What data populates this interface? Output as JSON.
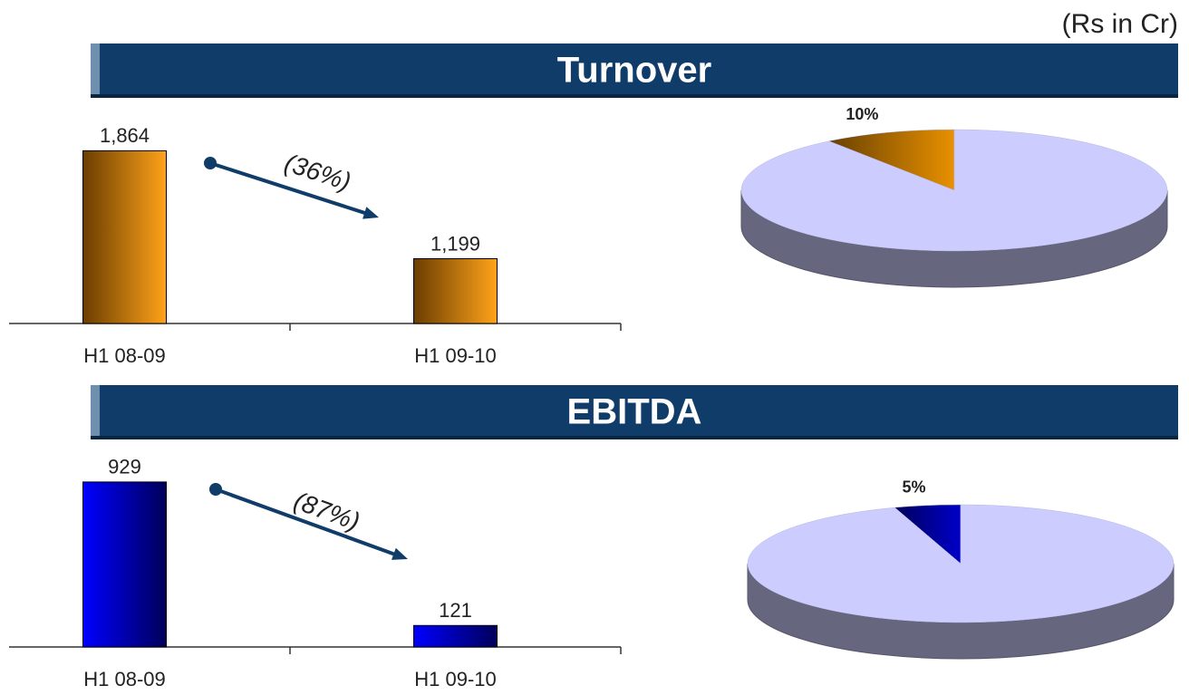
{
  "unit_note": "(Rs in Cr)",
  "chart_data": [
    {
      "type": "bar",
      "title": "Turnover",
      "categories": [
        "H1 08-09",
        "H1 09-10"
      ],
      "values": [
        1864,
        1199
      ],
      "value_labels": [
        "1,864",
        "1,199"
      ],
      "gradient": [
        "#6b3d00",
        "#ffa31a"
      ],
      "ylim": [
        800,
        2000
      ],
      "annotation": "(36%)"
    },
    {
      "type": "pie",
      "values": [
        10,
        90
      ],
      "value_labels": [
        "10%",
        null
      ],
      "colors": [
        "#e89000",
        "#ccccff"
      ]
    },
    {
      "type": "bar",
      "title": "EBITDA",
      "categories": [
        "H1 08-09",
        "H1 09-10"
      ],
      "values": [
        929,
        121
      ],
      "value_labels": [
        "929",
        "121"
      ],
      "gradient": [
        "#0000ff",
        "#00005a"
      ],
      "ylim": [
        0,
        1000
      ],
      "annotation": "(87%)"
    },
    {
      "type": "pie",
      "values": [
        5,
        95
      ],
      "value_labels": [
        "5%",
        null
      ],
      "colors": [
        "#0000c8",
        "#ccccff"
      ]
    }
  ]
}
